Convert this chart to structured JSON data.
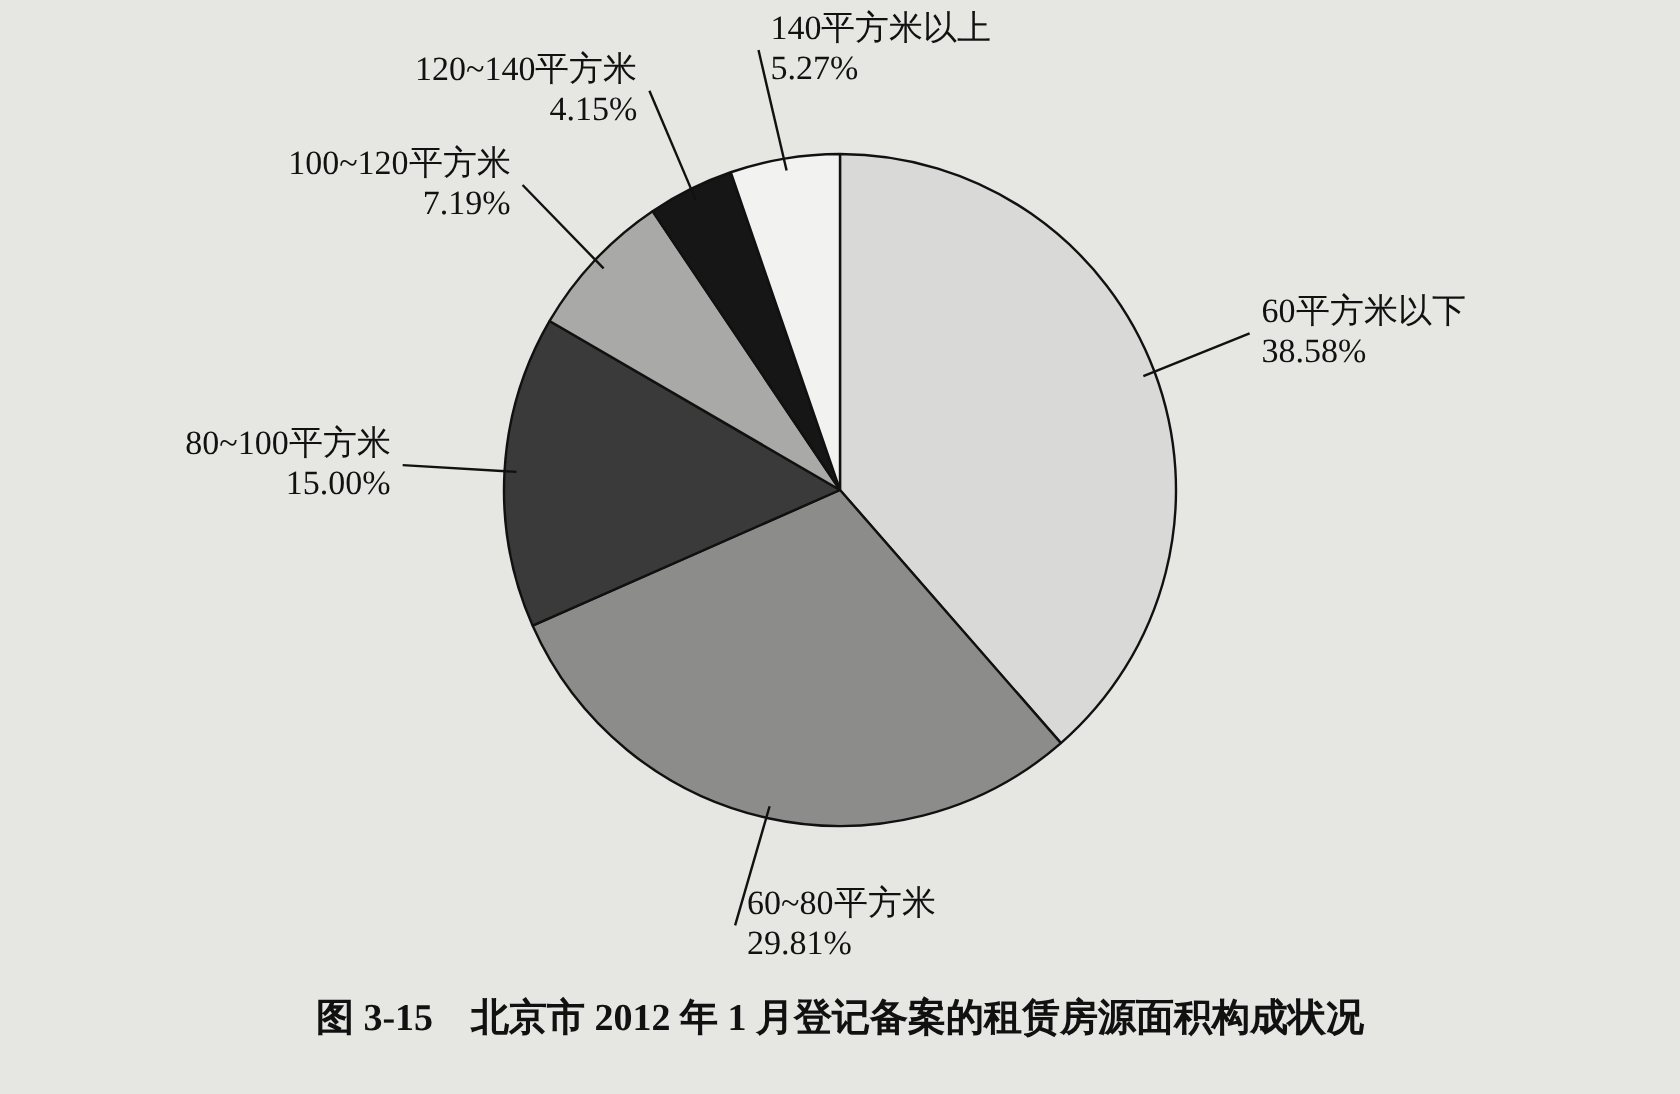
{
  "chart_data": {
    "type": "pie",
    "title": "图 3-15　北京市 2012 年 1 月登记备案的租赁房源面积构成状况",
    "categories": [
      "60平方米以下",
      "60~80平方米",
      "80~100平方米",
      "100~120平方米",
      "120~140平方米",
      "140平方米以上"
    ],
    "values": [
      38.58,
      29.81,
      15.0,
      7.19,
      4.15,
      5.27
    ],
    "value_labels": [
      "38.58%",
      "29.81%",
      "15.00%",
      "7.19%",
      "4.15%",
      "5.27%"
    ],
    "colors": [
      "#d9d9d7",
      "#8c8c8a",
      "#3a3a3a",
      "#a9a9a7",
      "#161616",
      "#f2f2f0"
    ],
    "legend": false
  }
}
